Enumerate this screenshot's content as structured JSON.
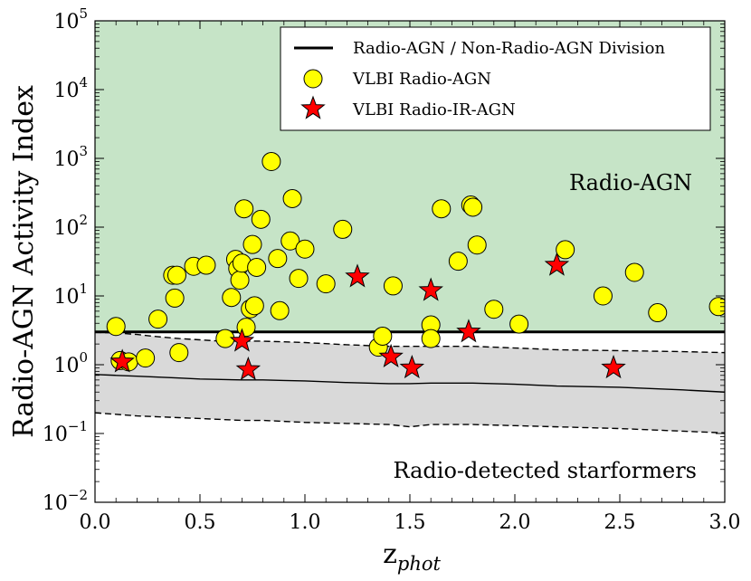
{
  "chart_data": {
    "type": "scatter",
    "title": "",
    "xlabel": "z",
    "xlabel_subscript": "phot",
    "ylabel": "Radio-AGN Activity Index",
    "xlim": [
      0.0,
      3.0
    ],
    "ylim_log10": [
      -2,
      5
    ],
    "yscale": "log",
    "x_ticks": [
      0.0,
      0.5,
      1.0,
      1.5,
      2.0,
      2.5,
      3.0
    ],
    "x_tick_labels": [
      "0.0",
      "0.5",
      "1.0",
      "1.5",
      "2.0",
      "2.5",
      "3.0"
    ],
    "y_ticks": [
      {
        "exp": -2,
        "base": "10",
        "sup": "−2"
      },
      {
        "exp": -1,
        "base": "10",
        "sup": "−1"
      },
      {
        "exp": 0,
        "base": "10",
        "sup": "0"
      },
      {
        "exp": 1,
        "base": "10",
        "sup": "1"
      },
      {
        "exp": 2,
        "base": "10",
        "sup": "2"
      },
      {
        "exp": 3,
        "base": "10",
        "sup": "3"
      },
      {
        "exp": 4,
        "base": "10",
        "sup": "4"
      },
      {
        "exp": 5,
        "base": "10",
        "sup": "5"
      }
    ],
    "division_value": 3.0,
    "legend": {
      "placement": "top-right",
      "entries": [
        {
          "label": "Radio-AGN / Non-Radio-AGN Division",
          "marker": "line"
        },
        {
          "label": "VLBI Radio-AGN",
          "marker": "circle"
        },
        {
          "label": "VLBI Radio-IR-AGN",
          "marker": "star"
        }
      ]
    },
    "region_labels": {
      "agn": "Radio-AGN",
      "starformers": "Radio-detected starformers"
    },
    "colors": {
      "agn_region": "#c6e4c7",
      "band": "#d9d9d9",
      "circle_fill": "#ffff00",
      "star_fill": "#ff0000",
      "edge": "#000000"
    },
    "starformer_band": {
      "z": [
        0.0,
        0.1,
        0.2,
        0.3,
        0.4,
        0.5,
        0.6,
        0.7,
        0.8,
        0.9,
        1.0,
        1.2,
        1.4,
        1.5,
        1.6,
        1.8,
        2.0,
        2.2,
        2.5,
        2.8,
        3.0
      ],
      "upper": [
        2.95,
        2.9,
        2.75,
        2.55,
        2.4,
        2.3,
        2.2,
        2.2,
        2.2,
        2.15,
        2.1,
        1.95,
        1.85,
        1.85,
        1.85,
        1.85,
        1.75,
        1.65,
        1.6,
        1.55,
        1.5
      ],
      "median": [
        0.72,
        0.7,
        0.68,
        0.66,
        0.64,
        0.62,
        0.61,
        0.6,
        0.6,
        0.59,
        0.58,
        0.55,
        0.53,
        0.53,
        0.54,
        0.54,
        0.52,
        0.49,
        0.47,
        0.43,
        0.4
      ],
      "lower": [
        0.2,
        0.19,
        0.18,
        0.175,
        0.17,
        0.165,
        0.16,
        0.155,
        0.155,
        0.15,
        0.145,
        0.14,
        0.135,
        0.125,
        0.135,
        0.135,
        0.13,
        0.125,
        0.118,
        0.108,
        0.102
      ]
    },
    "series": [
      {
        "name": "VLBI Radio-AGN",
        "marker": "circle",
        "points": [
          [
            0.1,
            3.6
          ],
          [
            0.12,
            1.15
          ],
          [
            0.16,
            1.1
          ],
          [
            0.24,
            1.25
          ],
          [
            0.3,
            4.6
          ],
          [
            0.37,
            20
          ],
          [
            0.38,
            9.3
          ],
          [
            0.39,
            20
          ],
          [
            0.4,
            1.5
          ],
          [
            0.47,
            27
          ],
          [
            0.53,
            28
          ],
          [
            0.62,
            2.4
          ],
          [
            0.65,
            9.5
          ],
          [
            0.67,
            34
          ],
          [
            0.68,
            25
          ],
          [
            0.69,
            17
          ],
          [
            0.7,
            30
          ],
          [
            0.71,
            185
          ],
          [
            0.72,
            3.5
          ],
          [
            0.74,
            6.5
          ],
          [
            0.75,
            56
          ],
          [
            0.76,
            7.2
          ],
          [
            0.77,
            26
          ],
          [
            0.79,
            130
          ],
          [
            0.84,
            900
          ],
          [
            0.87,
            35
          ],
          [
            0.88,
            6.1
          ],
          [
            0.93,
            63
          ],
          [
            0.94,
            260
          ],
          [
            0.97,
            18
          ],
          [
            1.0,
            48
          ],
          [
            1.1,
            15
          ],
          [
            1.18,
            93
          ],
          [
            1.35,
            1.8
          ],
          [
            1.37,
            2.6
          ],
          [
            1.42,
            14
          ],
          [
            1.6,
            3.8
          ],
          [
            1.6,
            2.4
          ],
          [
            1.65,
            185
          ],
          [
            1.73,
            32
          ],
          [
            1.79,
            210
          ],
          [
            1.8,
            195
          ],
          [
            1.82,
            55
          ],
          [
            1.9,
            6.4
          ],
          [
            2.02,
            3.9
          ],
          [
            2.24,
            47
          ],
          [
            2.42,
            10
          ],
          [
            2.57,
            22
          ],
          [
            2.68,
            5.7
          ],
          [
            2.97,
            7.0
          ]
        ]
      },
      {
        "name": "VLBI Radio-IR-AGN",
        "marker": "star",
        "points": [
          [
            0.13,
            1.1
          ],
          [
            0.7,
            2.2
          ],
          [
            0.73,
            0.85
          ],
          [
            1.25,
            19
          ],
          [
            1.41,
            1.3
          ],
          [
            1.51,
            0.9
          ],
          [
            1.6,
            12
          ],
          [
            1.78,
            3.0
          ],
          [
            2.2,
            28
          ],
          [
            2.47,
            0.9
          ]
        ]
      }
    ]
  }
}
